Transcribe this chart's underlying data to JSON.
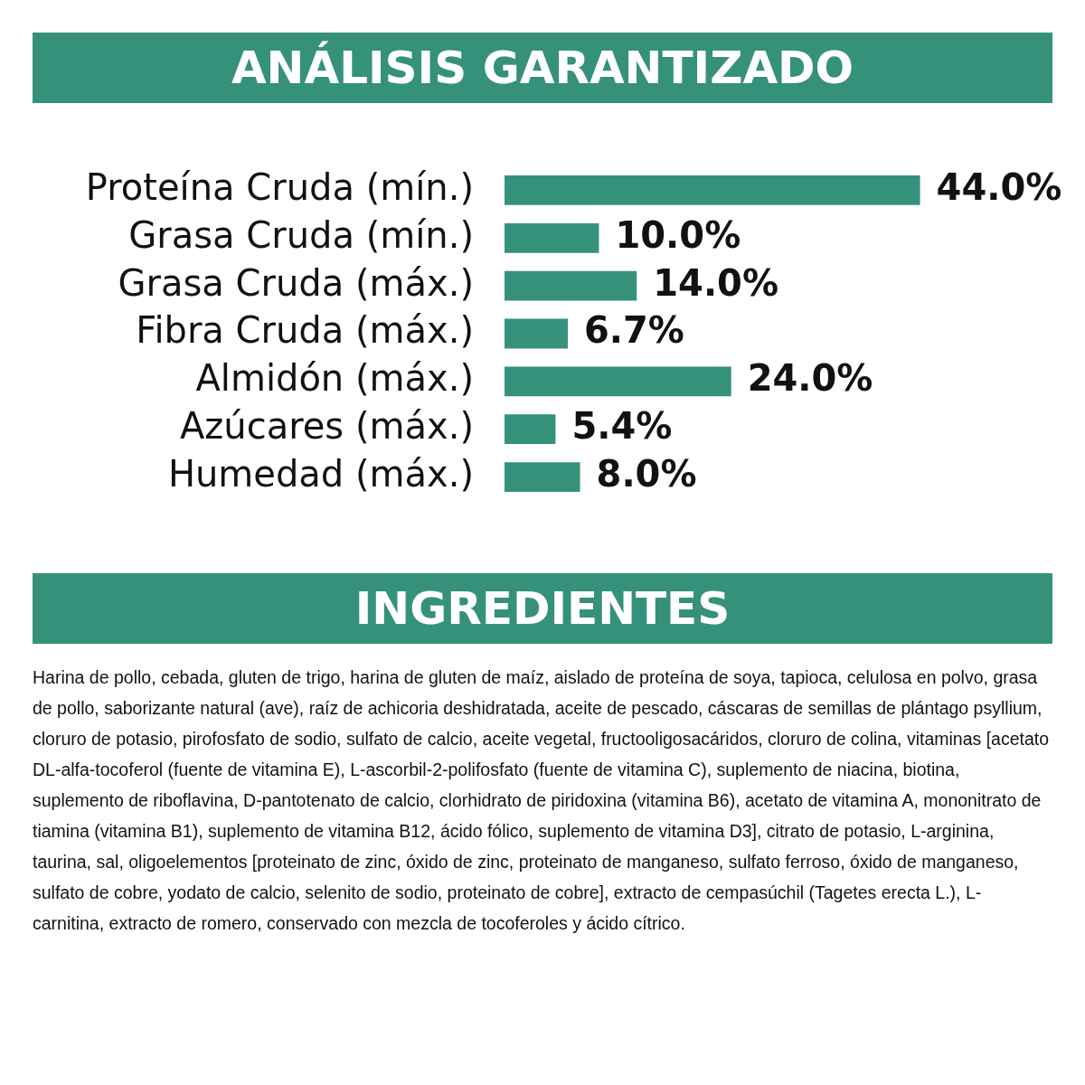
{
  "chart_data": [
    {
      "type": "bar",
      "title": "ANÁLISIS GARANTIZADO",
      "orientation": "horizontal",
      "categories": [
        "Proteína Cruda (mín.)",
        "Grasa Cruda (mín.)",
        "Grasa Cruda (máx.)",
        "Fibra Cruda (máx.)",
        "Almidón (máx.)",
        "Azúcares (máx.)",
        "Humedad (máx.)"
      ],
      "values": [
        44.0,
        10.0,
        14.0,
        6.7,
        24.0,
        5.4,
        8.0
      ],
      "value_labels": [
        "44.0%",
        "10.0%",
        "14.0%",
        "6.7%",
        "24.0%",
        "5.4%",
        "8.0%"
      ],
      "color": "#35917a",
      "tick_labels": "y"
    },
    {
      "type": "other",
      "title": "INGREDIENTES",
      "annotations": [
        "Harina de pollo, cebada, gluten de trigo, harina de gluten de maíz, aislado de proteína de soya, tapioca, celulosa en polvo, grasa de pollo, saborizante natural (ave), raíz de achicoria deshidratada, aceite de pescado, cáscaras de semillas de plántago psyllium, cloruro de potasio, pirofosfato de sodio, sulfato de calcio, aceite vegetal, fructooligosacáridos, cloruro de colina, vitaminas [acetato DL-alfa-tocoferol (fuente de vitamina E), L-ascorbil-2-polifosfato (fuente de vitamina C), suplemento de niacina, biotina, suplemento de riboflavina, D-pantotenato de calcio, clorhidrato de piridoxina (vitamina B6), acetato de vitamina A, mononitrato de tiamina (vitamina B1), suplemento de vitamina B12, ácido fólico, suplemento de vitamina D3], citrato de potasio, L-arginina, taurina, sal, oligoelementos [proteinato de zinc, óxido de zinc, proteinato de manganeso, sulfato ferroso, óxido de manganeso, sulfato de cobre, yodato de calcio, selenito de sodio, proteinato de cobre], extracto de cempasúchil (Tagetes erecta L.), L-carnitina, extracto de romero, conservado con mezcla de tocoferoles y ácido cítrico."
      ]
    }
  ]
}
